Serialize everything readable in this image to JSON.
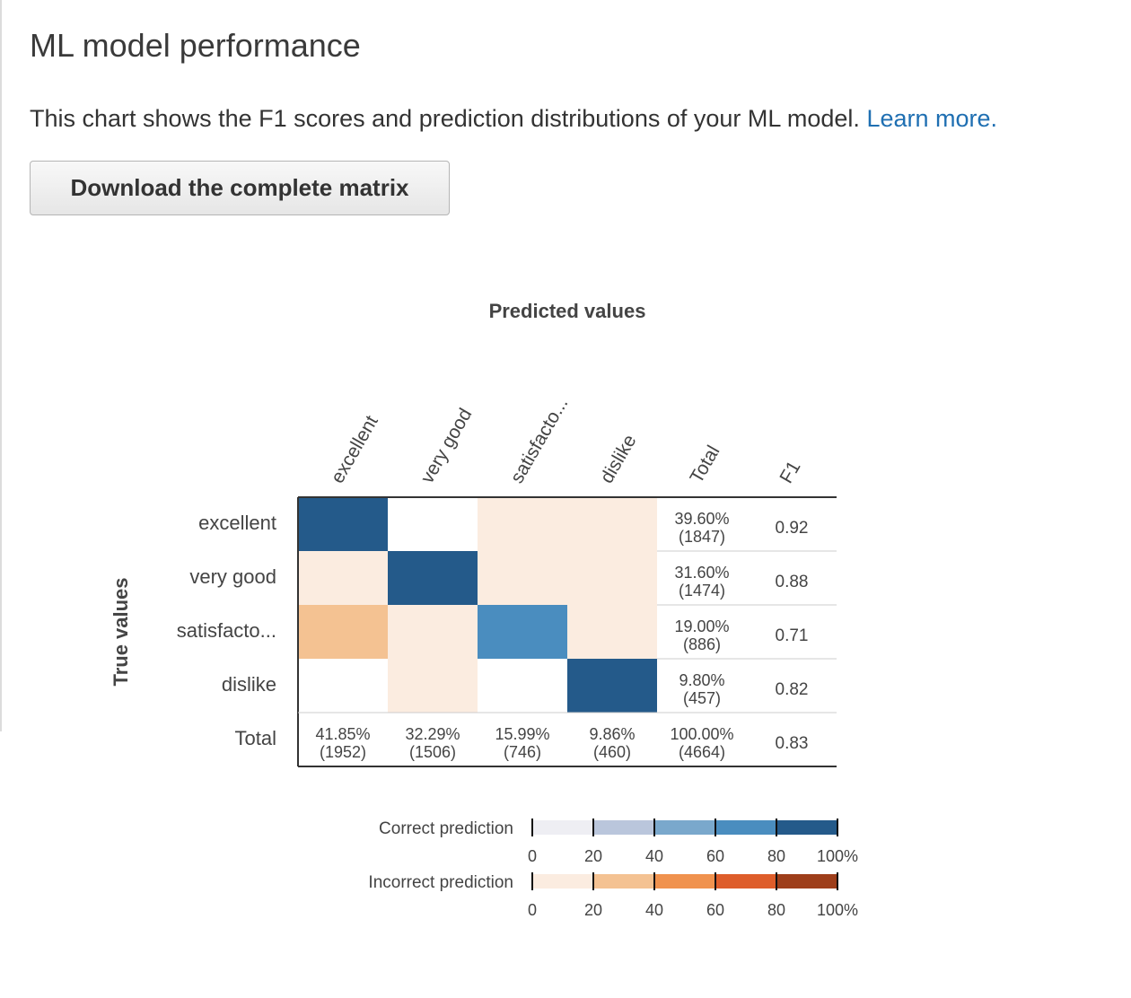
{
  "page": {
    "title": "ML model performance",
    "description": "This chart shows the F1 scores and prediction distributions of your ML model.",
    "learn_more": "Learn more.",
    "download_button": "Download the complete matrix"
  },
  "chart_data": {
    "type": "heatmap",
    "xlabel": "Predicted values",
    "ylabel": "True values",
    "column_labels": [
      "excellent",
      "very good",
      "satisfacto...",
      "dislike",
      "Total",
      "F1"
    ],
    "row_labels": [
      "excellent",
      "very good",
      "satisfacto...",
      "dislike",
      "Total"
    ],
    "cell_colors": [
      [
        "#245a8a",
        "#ffffff",
        "#fbece0",
        "#fbece0"
      ],
      [
        "#fbece0",
        "#245a8a",
        "#fbece0",
        "#fbece0"
      ],
      [
        "#f4c292",
        "#fbece0",
        "#4a8dbf",
        "#fbece0"
      ],
      [
        "#ffffff",
        "#fbece0",
        "#ffffff",
        "#245a8a"
      ]
    ],
    "row_totals": [
      {
        "pct": "39.60%",
        "count": "(1847)"
      },
      {
        "pct": "31.60%",
        "count": "(1474)"
      },
      {
        "pct": "19.00%",
        "count": "(886)"
      },
      {
        "pct": "9.80%",
        "count": "(457)"
      }
    ],
    "f1": [
      "0.92",
      "0.88",
      "0.71",
      "0.82"
    ],
    "column_totals": [
      {
        "pct": "41.85%",
        "count": "(1952)"
      },
      {
        "pct": "32.29%",
        "count": "(1506)"
      },
      {
        "pct": "15.99%",
        "count": "(746)"
      },
      {
        "pct": "9.86%",
        "count": "(460)"
      },
      {
        "pct": "100.00%",
        "count": "(4664)"
      }
    ],
    "overall_f1": "0.83",
    "legend": {
      "correct_label": "Correct prediction",
      "incorrect_label": "Incorrect prediction",
      "ticks": [
        "0",
        "20",
        "40",
        "60",
        "80",
        "100%"
      ],
      "correct_colors": [
        "#eeeef3",
        "#bac6dc",
        "#7aa8cc",
        "#4a8dbf",
        "#245a8a"
      ],
      "incorrect_colors": [
        "#fbece0",
        "#f4c292",
        "#f0924e",
        "#de5d2a",
        "#9e3e1a"
      ]
    }
  }
}
